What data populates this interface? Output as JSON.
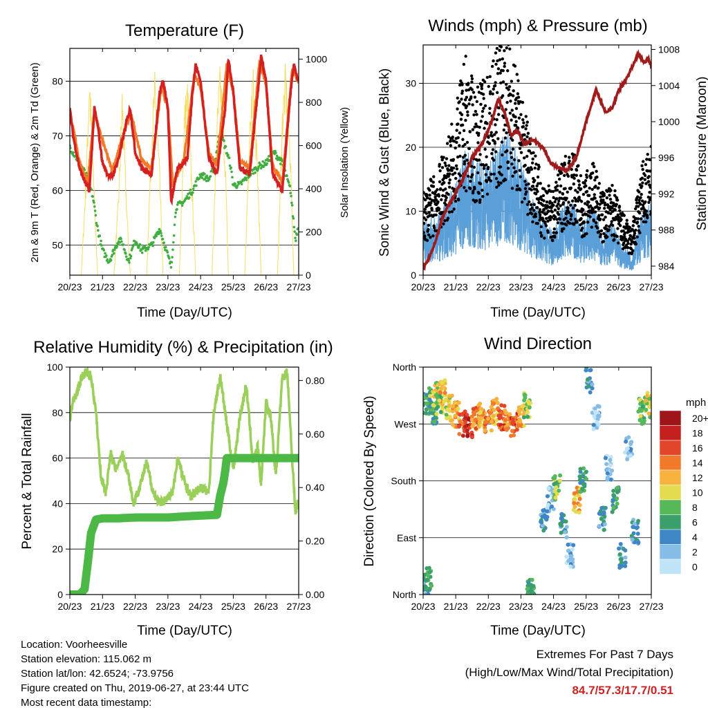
{
  "panels": {
    "temperature": {
      "title": "Temperature (F)",
      "ylabel_left": "2m & 9m T (Red, Orange) & 2m Td (Green)",
      "ylabel_right": "Solar Insolation (Yellow)",
      "xlabel": "Time (Day/UTC)"
    },
    "winds": {
      "title": "Winds (mph) & Pressure (mb)",
      "ylabel_left": "Sonic Wind & Gust (Blue, Black)",
      "ylabel_right": "Station Pressure (Maroon)",
      "xlabel": "Time (Day/UTC)"
    },
    "humidity": {
      "title": "Relative Humidity (%) & Precipitation (in)",
      "ylabel_left": "Percent & Total Rainfall",
      "xlabel": "Time (Day/UTC)"
    },
    "direction": {
      "title": "Wind Direction",
      "ylabel_left": "Direction (Colored By Speed)",
      "xlabel": "Time (Day/UTC)",
      "colorbar_title": "mph"
    }
  },
  "info": {
    "location": "Location: Voorheesville",
    "elevation": "Station elevation: 115.062 m",
    "latlon": "Station lat/lon: 42.6524; -73.9756",
    "created": "Figure created on Thu, 2019-06-27, at 23:44 UTC",
    "recent": "Most recent data timestamp:"
  },
  "extremes": {
    "line1": "Extremes For Past 7 Days",
    "line2": "(High/Low/Max Wind/Total Precipitation)",
    "values": "84.7/57.3/17.7/0.51"
  },
  "colors": {
    "temp2m": "#d42020",
    "temp9m": "#f07a28",
    "dewpoint": "#3fae3f",
    "solar": "#f5dc60",
    "gust": "#000000",
    "wind": "#5a9fd8",
    "pressure": "#a01c1c",
    "rh": "#9ad05a",
    "precip": "#4cb845"
  },
  "chart_data": [
    {
      "type": "line",
      "title": "Temperature (F)",
      "xlabel": "Time (Day/UTC)",
      "x_ticks": [
        "20/23",
        "21/23",
        "22/23",
        "23/23",
        "24/23",
        "25/23",
        "26/23",
        "27/23"
      ],
      "xlim": [
        0,
        7
      ],
      "ylim": [
        44.5,
        86
      ],
      "y_ticks": [
        50,
        60,
        70,
        80
      ],
      "y2lim": [
        0,
        1050
      ],
      "y2_ticks": [
        0,
        200,
        400,
        600,
        800,
        1000
      ],
      "grid": "horizontal",
      "series": [
        {
          "name": "2m T",
          "axis": "left",
          "x": [
            0,
            0.1,
            0.3,
            0.5,
            0.6,
            0.75,
            0.85,
            1.0,
            1.15,
            1.3,
            1.5,
            1.75,
            1.85,
            2.0,
            2.2,
            2.5,
            2.75,
            2.85,
            3.0,
            3.1,
            3.3,
            3.6,
            3.75,
            3.85,
            4.0,
            4.25,
            4.5,
            4.75,
            4.85,
            5.0,
            5.2,
            5.5,
            5.75,
            5.85,
            6.0,
            6.2,
            6.5,
            6.75,
            6.85,
            7.0
          ],
          "y": [
            75,
            70,
            64,
            61,
            60,
            75,
            72,
            65,
            63,
            62.5,
            66,
            73,
            75,
            67,
            64,
            63,
            78,
            80,
            75,
            58,
            64,
            66,
            78,
            83,
            80,
            66,
            63,
            75,
            84,
            78,
            64,
            63,
            78,
            84.5,
            80,
            63,
            60,
            78,
            83,
            80
          ]
        },
        {
          "name": "9m T",
          "axis": "left",
          "x": [
            0,
            0.3,
            0.55,
            0.75,
            0.9,
            1.3,
            1.75,
            1.9,
            2.2,
            2.5,
            2.8,
            3.0,
            3.15,
            3.5,
            3.8,
            4.0,
            4.25,
            4.5,
            4.8,
            5.0,
            5.2,
            5.5,
            5.8,
            6.0,
            6.2,
            6.5,
            6.8,
            7.0
          ],
          "y": [
            74.5,
            65,
            61.5,
            74.5,
            71,
            63.5,
            72.5,
            73.5,
            65.5,
            64,
            79,
            75,
            61,
            66,
            81,
            79,
            67,
            64.5,
            83,
            78,
            65.5,
            64,
            83.5,
            79.5,
            64.5,
            61.5,
            82,
            80
          ]
        },
        {
          "name": "2m Td",
          "axis": "left",
          "x": [
            0,
            0.2,
            0.4,
            0.55,
            0.7,
            0.85,
            1.0,
            1.2,
            1.5,
            1.6,
            1.8,
            2.0,
            2.2,
            2.5,
            2.75,
            3.0,
            3.1,
            3.25,
            3.5,
            3.75,
            4.0,
            4.25,
            4.4,
            4.6,
            4.75,
            4.9,
            5.0,
            5.2,
            5.5,
            5.8,
            6.0,
            6.25,
            6.5,
            6.75,
            6.9,
            7.0
          ],
          "y": [
            68,
            66,
            64,
            62,
            59,
            53,
            49,
            47,
            51,
            50.5,
            47,
            51,
            49,
            50,
            53,
            48,
            46,
            57,
            58,
            60,
            63,
            62,
            64,
            71,
            68,
            65,
            61,
            61,
            63,
            64.5,
            65,
            67,
            65,
            60,
            51,
            54
          ]
        },
        {
          "name": "Solar Insolation",
          "axis": "right",
          "x": [
            0,
            0.35,
            0.5,
            0.6,
            0.75,
            0.85,
            1.35,
            1.5,
            1.6,
            1.75,
            1.85,
            2.35,
            2.5,
            2.6,
            2.75,
            2.85,
            3.35,
            3.5,
            3.6,
            3.75,
            3.85,
            4.35,
            4.5,
            4.6,
            4.75,
            4.85,
            5.35,
            5.5,
            5.6,
            5.75,
            5.85,
            6.35,
            6.5,
            6.6,
            6.75,
            6.85,
            7.0
          ],
          "y": [
            0,
            0,
            500,
            1000,
            400,
            0,
            0,
            420,
            900,
            300,
            0,
            0,
            700,
            950,
            500,
            0,
            0,
            800,
            930,
            400,
            0,
            0,
            750,
            1000,
            600,
            0,
            0,
            700,
            1000,
            500,
            0,
            0,
            800,
            1000,
            600,
            0,
            0
          ]
        }
      ]
    },
    {
      "type": "scatter",
      "title": "Winds (mph) & Pressure (mb)",
      "xlabel": "Time (Day/UTC)",
      "x_ticks": [
        "20/23",
        "21/23",
        "22/23",
        "23/23",
        "24/23",
        "25/23",
        "26/23",
        "27/23"
      ],
      "xlim": [
        0,
        7
      ],
      "ylim": [
        0,
        36
      ],
      "y_ticks": [
        0,
        10,
        20,
        30
      ],
      "y2lim": [
        983,
        1008.5
      ],
      "y2_ticks": [
        984,
        988,
        992,
        996,
        1000,
        1004,
        1008
      ],
      "grid": "horizontal",
      "series": [
        {
          "name": "Gust",
          "axis": "left",
          "x": [
            0,
            0.5,
            1.0,
            1.3,
            1.6,
            2.0,
            2.3,
            2.6,
            3.0,
            3.3,
            3.6,
            4.0,
            4.3,
            4.6,
            4.9,
            5.2,
            5.5,
            5.8,
            6.1,
            6.4,
            6.7,
            7.0
          ],
          "y": [
            9,
            12,
            18,
            24,
            20,
            22,
            25,
            27,
            20,
            16,
            11,
            9,
            13,
            14,
            10,
            13,
            9,
            10,
            7,
            5,
            12,
            14
          ]
        },
        {
          "name": "Wind",
          "axis": "left",
          "x": [
            0,
            0.5,
            1.0,
            1.3,
            1.6,
            2.0,
            2.3,
            2.6,
            3.0,
            3.3,
            3.6,
            4.0,
            4.3,
            4.6,
            4.9,
            5.2,
            5.5,
            5.8,
            6.1,
            6.4,
            6.7,
            7.0
          ],
          "y": [
            5,
            6,
            9,
            12,
            11,
            11,
            13,
            14,
            11,
            8,
            6,
            4,
            7,
            7,
            5,
            7,
            4,
            5,
            3,
            2,
            6,
            7
          ]
        },
        {
          "name": "Station Pressure",
          "axis": "right",
          "x": [
            0,
            0.2,
            0.4,
            0.6,
            0.9,
            1.2,
            1.5,
            1.8,
            2.1,
            2.3,
            2.5,
            2.7,
            2.9,
            3.1,
            3.4,
            3.7,
            3.9,
            4.1,
            4.4,
            4.7,
            5.0,
            5.3,
            5.6,
            5.8,
            6.0,
            6.2,
            6.4,
            6.6,
            6.8,
            6.9,
            7.0
          ],
          "y": [
            983.7,
            985,
            987,
            989.5,
            991.5,
            993.5,
            996,
            997.5,
            1000,
            1002.5,
            1001,
            998.5,
            999,
            997.5,
            998,
            997,
            995.5,
            995,
            994.5,
            996,
            1000,
            1003.5,
            1001,
            1001.5,
            1003.5,
            1004.5,
            1006,
            1007.5,
            1006.5,
            1007,
            1006.2
          ]
        }
      ]
    },
    {
      "type": "line",
      "title": "Relative Humidity (%) & Precipitation (in)",
      "xlabel": "Time (Day/UTC)",
      "x_ticks": [
        "20/23",
        "21/23",
        "22/23",
        "23/23",
        "24/23",
        "25/23",
        "26/23",
        "27/23"
      ],
      "xlim": [
        0,
        7
      ],
      "ylim": [
        0,
        100
      ],
      "y_ticks": [
        0,
        20,
        40,
        60,
        80,
        100
      ],
      "y2lim": [
        0,
        0.85
      ],
      "y2_ticks": [
        0.0,
        0.2,
        0.4,
        0.6,
        0.8
      ],
      "y2_tick_labels": [
        "0.00",
        "0.20",
        "0.40",
        "0.60",
        "0.80"
      ],
      "grid": "horizontal",
      "series": [
        {
          "name": "Relative Humidity",
          "axis": "left",
          "x": [
            0,
            0.1,
            0.2,
            0.35,
            0.5,
            0.65,
            0.8,
            0.95,
            1.1,
            1.25,
            1.4,
            1.6,
            1.8,
            1.95,
            2.15,
            2.35,
            2.55,
            2.75,
            2.95,
            3.15,
            3.3,
            3.5,
            3.7,
            3.85,
            4.0,
            4.25,
            4.4,
            4.6,
            4.8,
            5.0,
            5.2,
            5.4,
            5.6,
            5.75,
            5.85,
            6.0,
            6.15,
            6.3,
            6.5,
            6.65,
            6.8,
            6.9,
            7.0
          ],
          "y": [
            77,
            85,
            88,
            95,
            98,
            96,
            80,
            52,
            45,
            62,
            55,
            62,
            52,
            40,
            48,
            58,
            45,
            40,
            42,
            45,
            60,
            50,
            43,
            45,
            47,
            45,
            80,
            96,
            75,
            55,
            78,
            92,
            58,
            65,
            48,
            85,
            78,
            52,
            95,
            98,
            60,
            36,
            42
          ]
        },
        {
          "name": "Total Precipitation",
          "axis": "right",
          "x": [
            0,
            0.3,
            0.45,
            0.55,
            0.65,
            0.8,
            1.0,
            1.5,
            2.0,
            3.0,
            3.5,
            4.0,
            4.5,
            4.6,
            4.7,
            4.75,
            4.8,
            4.9,
            5.0,
            6.0,
            7.0
          ],
          "y": [
            0.0,
            0.0,
            0.02,
            0.12,
            0.23,
            0.28,
            0.285,
            0.285,
            0.288,
            0.288,
            0.292,
            0.295,
            0.298,
            0.37,
            0.42,
            0.46,
            0.51,
            0.51,
            0.51,
            0.51,
            0.51
          ]
        }
      ]
    },
    {
      "type": "scatter",
      "title": "Wind Direction",
      "xlabel": "Time (Day/UTC)",
      "x_ticks": [
        "20/23",
        "21/23",
        "22/23",
        "23/23",
        "24/23",
        "25/23",
        "26/23",
        "27/23"
      ],
      "xlim": [
        0,
        7
      ],
      "ylim": [
        0,
        360
      ],
      "y_ticks": [
        0,
        90,
        180,
        270,
        360
      ],
      "y_tick_labels": [
        "North",
        "East",
        "South",
        "West",
        "North"
      ],
      "grid": "horizontal",
      "colorbar": {
        "title": "mph",
        "labels": [
          "0",
          "2",
          "4",
          "6",
          "8",
          "10",
          "12",
          "14",
          "16",
          "18",
          "20+"
        ],
        "colors": [
          "#bfe3f7",
          "#85bde6",
          "#3f86c6",
          "#3a9f6a",
          "#57b85a",
          "#e3dc4e",
          "#f7b33e",
          "#f07a2a",
          "#e2462a",
          "#c4201f",
          "#9e1619"
        ]
      },
      "series": [
        {
          "name": "Direction",
          "axis": "left",
          "x": [
            0.1,
            0.2,
            0.3,
            0.4,
            0.5,
            0.6,
            0.8,
            1.0,
            1.2,
            1.4,
            1.6,
            1.8,
            2.0,
            2.2,
            2.4,
            2.6,
            2.8,
            3.0,
            3.2,
            0.05,
            0.15,
            3.3,
            3.7,
            3.9,
            4.1,
            4.3,
            4.5,
            4.7,
            4.9,
            5.1,
            5.3,
            5.5,
            5.7,
            5.9,
            6.1,
            6.3,
            6.5,
            6.7,
            6.9
          ],
          "y": [
            300,
            310,
            290,
            315,
            305,
            320,
            295,
            285,
            270,
            265,
            280,
            285,
            275,
            290,
            280,
            275,
            270,
            285,
            300,
            10,
            25,
            5,
            120,
            150,
            170,
            110,
            60,
            150,
            180,
            340,
            280,
            120,
            200,
            150,
            60,
            230,
            100,
            290,
            300
          ],
          "speed": [
            6,
            8,
            6,
            10,
            8,
            12,
            10,
            12,
            16,
            18,
            14,
            12,
            14,
            12,
            16,
            14,
            16,
            12,
            8,
            4,
            6,
            6,
            4,
            2,
            8,
            4,
            2,
            12,
            6,
            4,
            2,
            4,
            2,
            6,
            4,
            2,
            4,
            8,
            10
          ]
        }
      ]
    }
  ]
}
